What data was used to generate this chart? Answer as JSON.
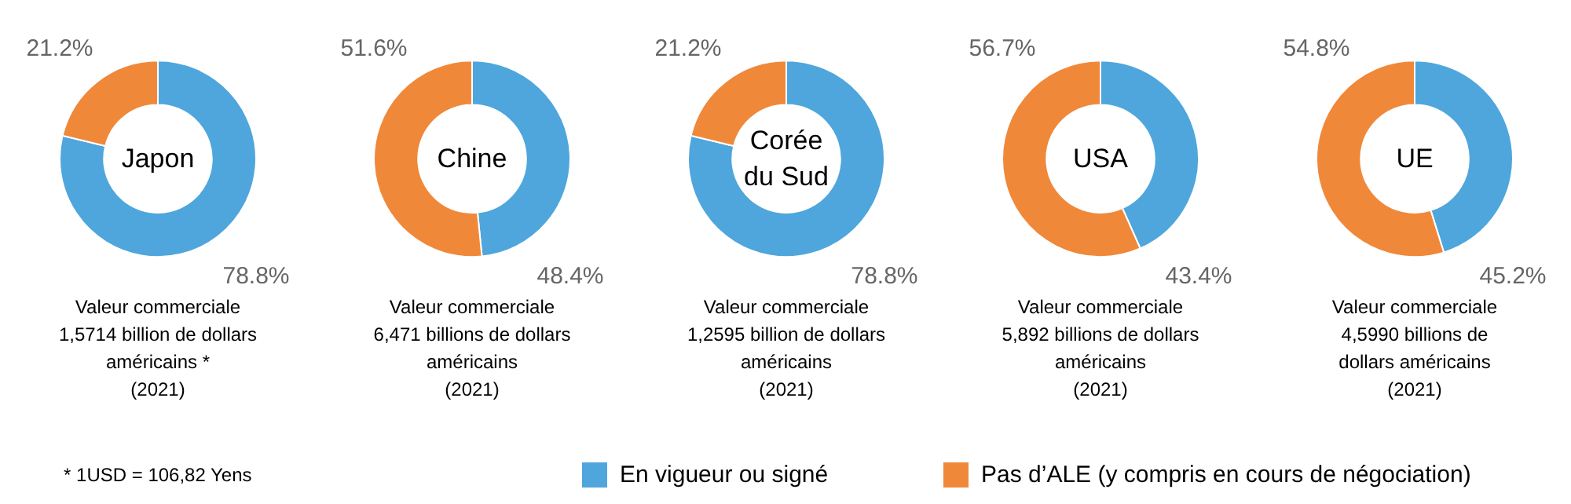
{
  "chart_data": [
    {
      "type": "donut",
      "title": "Japon",
      "categories": [
        "En vigueur ou signé",
        "Pas d’ALE (y compris en cours de négociation)"
      ],
      "values": [
        78.8,
        21.2
      ],
      "value_labels": [
        "78.8%",
        "21.2%"
      ],
      "colors": [
        "#4ea6dc",
        "#f0883a"
      ],
      "legend": "bottom",
      "annotations": [
        "Valeur commerciale\n1,5714 billion de dollars\naméricains *\n(2021)",
        "* 1USD = 106,82 Yens"
      ]
    },
    {
      "type": "donut",
      "title": "Chine",
      "categories": [
        null,
        null
      ],
      "values": [
        48.4,
        51.6
      ],
      "value_labels": [
        "48.4%",
        "51.6%"
      ],
      "colors": [
        "#4ea6dc",
        "#f0883a"
      ],
      "annotations": [
        "Valeur commerciale\n6,471 billions de dollars\naméricains\n(2021)"
      ]
    },
    {
      "type": "donut",
      "title": "Corée\ndu Sud",
      "categories": [
        null,
        null
      ],
      "values": [
        78.8,
        21.2
      ],
      "value_labels": [
        "78.8%",
        "21.2%"
      ],
      "colors": [
        "#4ea6dc",
        "#f0883a"
      ],
      "annotations": [
        "Valeur commerciale\n1,2595 billion de dollars\naméricains\n(2021)"
      ]
    },
    {
      "type": "donut",
      "title": "USA",
      "categories": [
        null,
        null
      ],
      "values": [
        43.4,
        56.7
      ],
      "value_labels": [
        "43.4%",
        "56.7%"
      ],
      "colors": [
        "#4ea6dc",
        "#f0883a"
      ],
      "annotations": [
        "Valeur commerciale\n5,892 billions de dollars\naméricains\n(2021)"
      ]
    },
    {
      "type": "donut",
      "title": "UE",
      "categories": [
        null,
        null
      ],
      "values": [
        45.2,
        54.8
      ],
      "value_labels": [
        "45.2%",
        "54.8%"
      ],
      "colors": [
        "#4ea6dc",
        "#f0883a"
      ],
      "annotations": [
        "Valeur commerciale\n4,5990 billions de\ndollars américains\n(2021)"
      ]
    }
  ]
}
